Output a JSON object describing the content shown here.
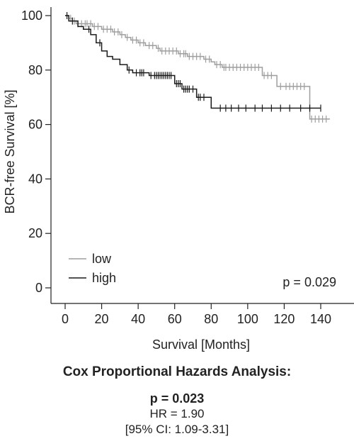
{
  "chart_data": {
    "type": "line",
    "subtype": "kaplan-meier",
    "xlabel": "Survival [Months]",
    "ylabel": "BCR-free Survival [%]",
    "xlim": [
      0,
      150
    ],
    "ylim": [
      0,
      100
    ],
    "xticks": [
      0,
      20,
      40,
      60,
      80,
      100,
      120,
      140
    ],
    "yticks": [
      0,
      20,
      40,
      60,
      80,
      100
    ],
    "grid": false,
    "legend_position": "bottom-left",
    "annotation": "p = 0.029",
    "series": [
      {
        "name": "low",
        "color": "#9e9e9e",
        "steps": [
          [
            0,
            100
          ],
          [
            2,
            99
          ],
          [
            4,
            98
          ],
          [
            6,
            97
          ],
          [
            15,
            96
          ],
          [
            20,
            95
          ],
          [
            26,
            94
          ],
          [
            30,
            93
          ],
          [
            33,
            92
          ],
          [
            36,
            91
          ],
          [
            40,
            90
          ],
          [
            44,
            89
          ],
          [
            50,
            88
          ],
          [
            52,
            87
          ],
          [
            62,
            86
          ],
          [
            67,
            85
          ],
          [
            76,
            84
          ],
          [
            80,
            83
          ],
          [
            82,
            82
          ],
          [
            86,
            81
          ],
          [
            108,
            78
          ],
          [
            116,
            74
          ],
          [
            134,
            62
          ]
        ],
        "end": 145,
        "censor": [
          3,
          5,
          7,
          9,
          11,
          12,
          14,
          16,
          18,
          21,
          23,
          25,
          27,
          29,
          31,
          34,
          37,
          39,
          41,
          43,
          46,
          48,
          51,
          53,
          55,
          57,
          59,
          61,
          63,
          65,
          66,
          68,
          70,
          72,
          74,
          77,
          79,
          83,
          85,
          87,
          88,
          90,
          92,
          94,
          96,
          98,
          100,
          102,
          104,
          106,
          109,
          111,
          113,
          118,
          121,
          123,
          125,
          127,
          129,
          131,
          135,
          137,
          139,
          141,
          143
        ]
      },
      {
        "name": "high",
        "color": "#1a1a1a",
        "steps": [
          [
            0,
            100
          ],
          [
            2,
            98
          ],
          [
            7,
            96
          ],
          [
            10,
            95
          ],
          [
            14,
            93
          ],
          [
            17,
            90
          ],
          [
            20,
            87
          ],
          [
            23,
            85
          ],
          [
            26,
            84
          ],
          [
            30,
            82
          ],
          [
            34,
            80
          ],
          [
            37,
            79
          ],
          [
            46,
            78
          ],
          [
            60,
            75
          ],
          [
            64,
            73
          ],
          [
            72,
            70
          ],
          [
            80,
            66
          ]
        ],
        "end": 140,
        "censor": [
          1,
          4,
          13,
          19,
          35,
          39,
          41,
          42,
          43,
          47,
          49,
          50,
          51,
          52,
          53,
          54,
          55,
          56,
          57,
          58,
          61,
          62,
          63,
          65,
          66,
          67,
          68,
          70,
          73,
          74,
          76,
          85,
          88,
          91,
          95,
          99,
          104,
          108,
          113,
          118,
          123,
          129,
          134,
          140
        ]
      }
    ]
  },
  "stats": {
    "title": "Cox Proportional Hazards Analysis:",
    "p_value": "p = 0.023",
    "hr": "HR = 1.90",
    "ci": "[95% CI: 1.09-3.31]"
  }
}
